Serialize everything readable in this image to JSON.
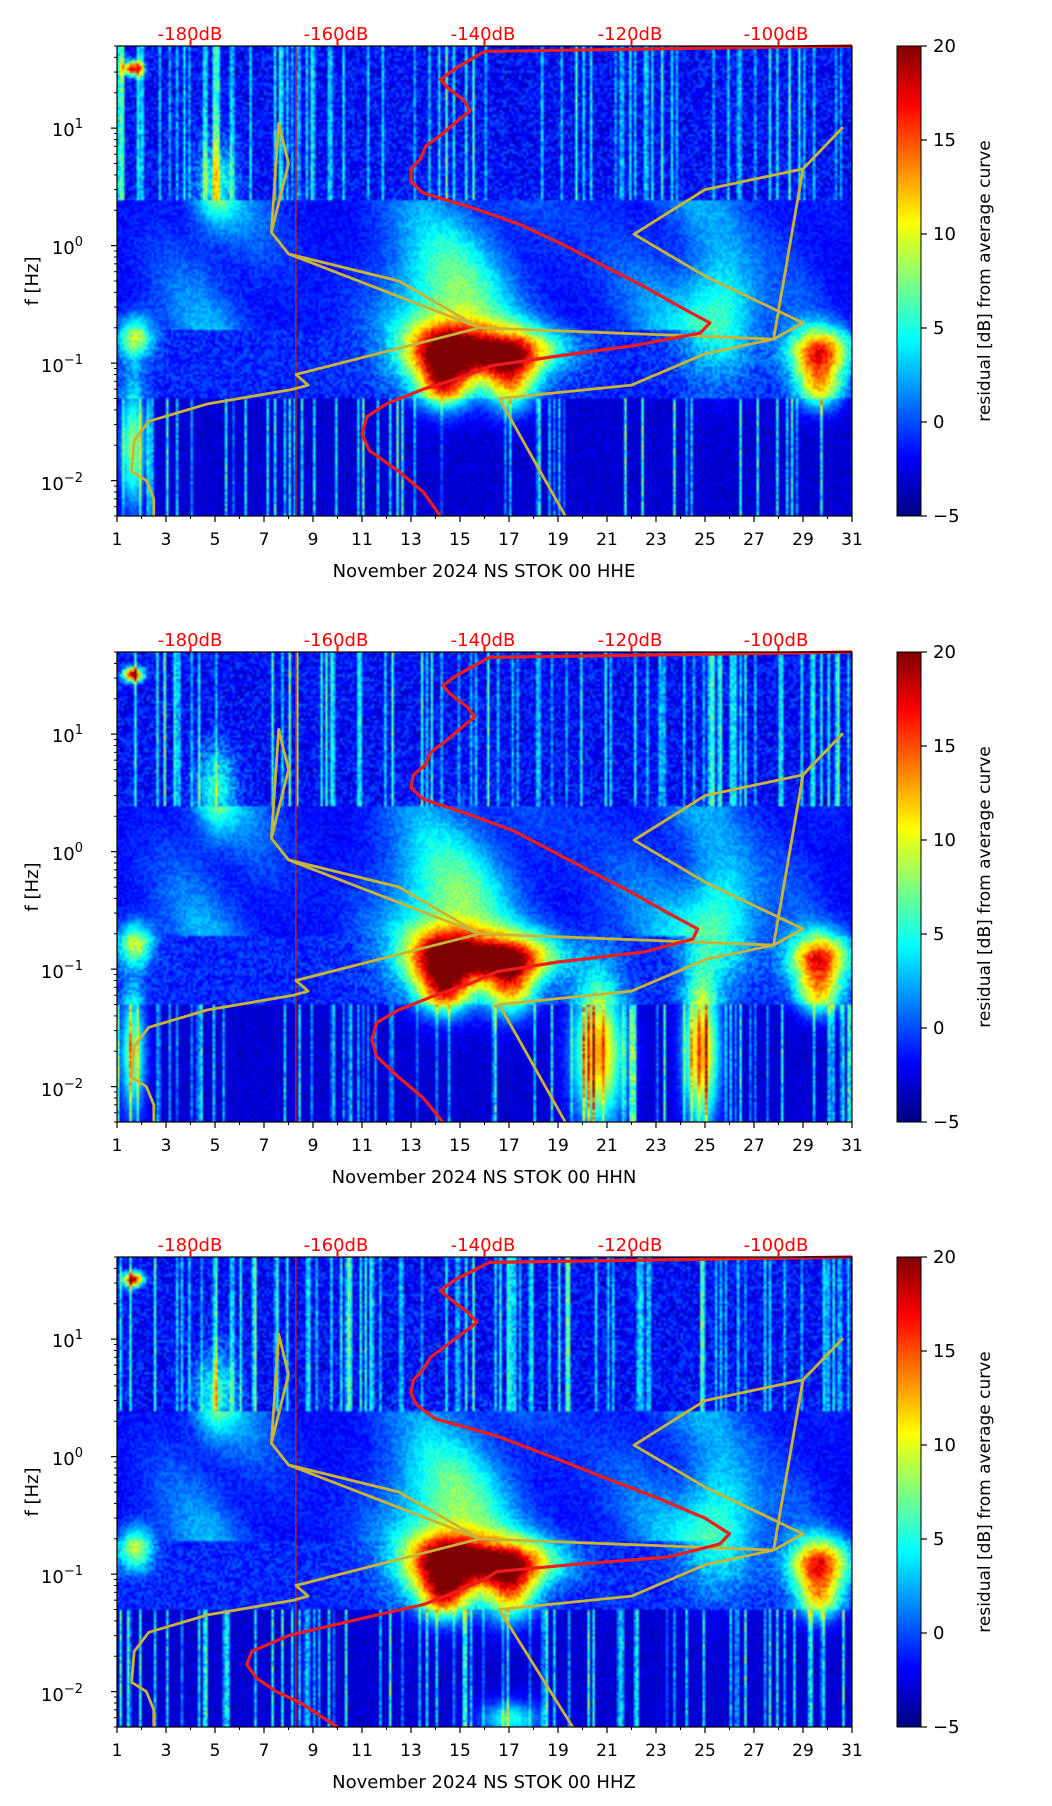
{
  "colormap": [
    "#00007f",
    "#0000ff",
    "#007fff",
    "#00ffff",
    "#7fff7f",
    "#ffff00",
    "#ff7f00",
    "#ff0000",
    "#7f0000"
  ],
  "colors": {
    "noise_curve": "#ee1c1c",
    "model_curve": "#c9b437",
    "db_label": "#ff0000"
  },
  "chart_data": [
    {
      "type": "heatmap",
      "title": "November 2024 NS STOK 00 HHE",
      "xlabel": "November 2024 NS STOK 00 HHE",
      "ylabel": "f [Hz]",
      "xlim": [
        1,
        31
      ],
      "ylim": [
        0.005,
        50
      ],
      "yscale": "log",
      "xticks": [
        "1",
        "3",
        "5",
        "7",
        "9",
        "11",
        "13",
        "15",
        "17",
        "19",
        "21",
        "23",
        "25",
        "27",
        "29",
        "31"
      ],
      "yticks": [
        {
          "base": "10",
          "exp": "−2",
          "value": 0.01
        },
        {
          "base": "10",
          "exp": "−1",
          "value": 0.1
        },
        {
          "base": "10",
          "exp": "0",
          "value": 1
        },
        {
          "base": "10",
          "exp": "1",
          "value": 10
        }
      ],
      "top_axis_labels": [
        "-180dB",
        "-160dB",
        "-140dB",
        "-120dB",
        "-100dB"
      ],
      "colorbar": {
        "label": "residual [dB] from average curve",
        "range": [
          -5,
          20
        ],
        "ticks": [
          "−5",
          "0",
          "5",
          "10",
          "15",
          "20"
        ]
      },
      "curve_red": [
        [
          14.2,
          0.005
        ],
        [
          13.5,
          0.008
        ],
        [
          12.5,
          0.012
        ],
        [
          11.3,
          0.018
        ],
        [
          11.0,
          0.025
        ],
        [
          11.2,
          0.035
        ],
        [
          12.0,
          0.045
        ],
        [
          13.5,
          0.06
        ],
        [
          15.0,
          0.075
        ],
        [
          16.3,
          0.095
        ],
        [
          19.0,
          0.115
        ],
        [
          22.0,
          0.14
        ],
        [
          24.8,
          0.18
        ],
        [
          25.2,
          0.22
        ],
        [
          24.0,
          0.3
        ],
        [
          22.5,
          0.45
        ],
        [
          21.0,
          0.65
        ],
        [
          19.5,
          0.95
        ],
        [
          17.5,
          1.5
        ],
        [
          15.5,
          2.1
        ],
        [
          13.5,
          2.8
        ],
        [
          13.0,
          3.5
        ],
        [
          13.0,
          4.5
        ],
        [
          13.4,
          5.5
        ],
        [
          13.6,
          7.0
        ],
        [
          14.3,
          9.0
        ],
        [
          15.0,
          12
        ],
        [
          15.4,
          14
        ],
        [
          15.2,
          17
        ],
        [
          14.5,
          22
        ],
        [
          14.2,
          26
        ],
        [
          14.8,
          32
        ],
        [
          16.0,
          45
        ],
        [
          31.0,
          50
        ]
      ],
      "curve_yellow": [
        [
          19.3,
          0.005
        ],
        [
          16.6,
          0.05
        ],
        [
          22.0,
          0.065
        ],
        [
          25.0,
          0.12
        ],
        [
          27.8,
          0.16
        ],
        [
          29.0,
          0.22
        ],
        [
          25.0,
          0.55
        ],
        [
          22.1,
          1.25
        ],
        [
          25.0,
          3.0
        ],
        [
          29.0,
          4.5
        ],
        [
          30.6,
          10
        ],
        [
          29.0,
          4.5
        ],
        [
          27.8,
          0.16
        ],
        [
          15.8,
          0.2
        ],
        [
          12.5,
          0.5
        ],
        [
          8.0,
          0.85
        ],
        [
          7.3,
          1.3
        ],
        [
          8.0,
          5.0
        ],
        [
          7.6,
          11
        ],
        [
          7.3,
          1.3
        ],
        [
          8.0,
          0.85
        ],
        [
          15.8,
          0.2
        ],
        [
          8.3,
          0.08
        ],
        [
          8.8,
          0.065
        ],
        [
          8.2,
          0.06
        ],
        [
          4.7,
          0.045
        ],
        [
          2.3,
          0.032
        ],
        [
          1.7,
          0.022
        ],
        [
          1.6,
          0.012
        ],
        [
          2.2,
          0.01
        ],
        [
          2.5,
          0.007
        ],
        [
          2.5,
          0.005
        ]
      ],
      "hotspots": [
        [
          14.3,
          0.13,
          1.6,
          0.25,
          18
        ],
        [
          16.9,
          0.13,
          2.0,
          0.2,
          18
        ],
        [
          29.6,
          0.13,
          1.2,
          0.2,
          17
        ],
        [
          14.3,
          0.065,
          1.0,
          0.2,
          13
        ],
        [
          17.0,
          0.07,
          1.0,
          0.25,
          12
        ],
        [
          29.6,
          0.065,
          0.9,
          0.2,
          12
        ],
        [
          14.2,
          0.3,
          2.5,
          0.6,
          6
        ],
        [
          25.5,
          0.25,
          1.5,
          0.5,
          7
        ],
        [
          1.7,
          0.17,
          0.7,
          0.18,
          10
        ],
        [
          5.0,
          3.5,
          0.8,
          0.35,
          7
        ],
        [
          1.6,
          33,
          0.4,
          0.06,
          20
        ],
        [
          1.6,
          0.02,
          0.5,
          0.5,
          11
        ]
      ],
      "strong_lows": [
        [
          20.6,
          0.02,
          1.0,
          0.6,
          0
        ],
        [
          24.8,
          0.02,
          0.7,
          0.6,
          0
        ]
      ]
    },
    {
      "type": "heatmap",
      "title": "November 2024 NS STOK 00 HHN",
      "xlabel": "November 2024 NS STOK 00 HHN",
      "ylabel": "f [Hz]",
      "xlim": [
        1,
        31
      ],
      "ylim": [
        0.005,
        50
      ],
      "yscale": "log",
      "xticks": [
        "1",
        "3",
        "5",
        "7",
        "9",
        "11",
        "13",
        "15",
        "17",
        "19",
        "21",
        "23",
        "25",
        "27",
        "29",
        "31"
      ],
      "yticks": [
        {
          "base": "10",
          "exp": "−2",
          "value": 0.01
        },
        {
          "base": "10",
          "exp": "−1",
          "value": 0.1
        },
        {
          "base": "10",
          "exp": "0",
          "value": 1
        },
        {
          "base": "10",
          "exp": "1",
          "value": 10
        }
      ],
      "top_axis_labels": [
        "-180dB",
        "-160dB",
        "-140dB",
        "-120dB",
        "-100dB"
      ],
      "colorbar": {
        "label": "residual [dB] from average curve",
        "range": [
          -5,
          20
        ],
        "ticks": [
          "−5",
          "0",
          "5",
          "10",
          "15",
          "20"
        ]
      },
      "curve_red": [
        [
          14.3,
          0.005
        ],
        [
          13.5,
          0.008
        ],
        [
          12.5,
          0.012
        ],
        [
          11.6,
          0.018
        ],
        [
          11.4,
          0.025
        ],
        [
          11.6,
          0.035
        ],
        [
          12.5,
          0.045
        ],
        [
          14.0,
          0.06
        ],
        [
          15.4,
          0.075
        ],
        [
          16.5,
          0.095
        ],
        [
          19.0,
          0.115
        ],
        [
          22.5,
          0.14
        ],
        [
          24.5,
          0.18
        ],
        [
          24.7,
          0.22
        ],
        [
          23.5,
          0.3
        ],
        [
          22.0,
          0.45
        ],
        [
          20.5,
          0.65
        ],
        [
          19.0,
          0.95
        ],
        [
          17.2,
          1.5
        ],
        [
          15.3,
          2.1
        ],
        [
          13.5,
          2.8
        ],
        [
          13.0,
          3.5
        ],
        [
          13.1,
          4.5
        ],
        [
          13.6,
          5.5
        ],
        [
          13.8,
          7.0
        ],
        [
          14.5,
          9.0
        ],
        [
          15.2,
          12
        ],
        [
          15.6,
          14
        ],
        [
          15.3,
          17
        ],
        [
          14.6,
          22
        ],
        [
          14.3,
          26
        ],
        [
          14.9,
          32
        ],
        [
          16.2,
          45
        ],
        [
          31.0,
          50
        ]
      ],
      "curve_yellow": [
        [
          19.3,
          0.005
        ],
        [
          16.6,
          0.05
        ],
        [
          22.0,
          0.065
        ],
        [
          25.0,
          0.12
        ],
        [
          27.8,
          0.16
        ],
        [
          29.0,
          0.22
        ],
        [
          25.0,
          0.55
        ],
        [
          22.1,
          1.25
        ],
        [
          25.0,
          3.0
        ],
        [
          29.0,
          4.5
        ],
        [
          30.6,
          10
        ],
        [
          29.0,
          4.5
        ],
        [
          27.8,
          0.16
        ],
        [
          15.8,
          0.2
        ],
        [
          12.5,
          0.5
        ],
        [
          8.0,
          0.85
        ],
        [
          7.3,
          1.3
        ],
        [
          8.0,
          5.0
        ],
        [
          7.6,
          11
        ],
        [
          7.3,
          1.3
        ],
        [
          8.0,
          0.85
        ],
        [
          15.8,
          0.2
        ],
        [
          8.3,
          0.08
        ],
        [
          8.8,
          0.065
        ],
        [
          8.2,
          0.06
        ],
        [
          4.7,
          0.045
        ],
        [
          2.3,
          0.032
        ],
        [
          1.7,
          0.022
        ],
        [
          1.6,
          0.012
        ],
        [
          2.2,
          0.01
        ],
        [
          2.5,
          0.007
        ],
        [
          2.5,
          0.005
        ]
      ],
      "hotspots": [
        [
          14.3,
          0.13,
          1.6,
          0.25,
          18
        ],
        [
          16.9,
          0.13,
          2.0,
          0.2,
          18
        ],
        [
          29.6,
          0.13,
          1.2,
          0.2,
          17
        ],
        [
          14.3,
          0.065,
          1.0,
          0.2,
          13
        ],
        [
          17.0,
          0.07,
          1.0,
          0.25,
          12
        ],
        [
          29.6,
          0.065,
          0.9,
          0.2,
          12
        ],
        [
          14.2,
          0.3,
          2.5,
          0.6,
          6
        ],
        [
          25.5,
          0.25,
          1.5,
          0.5,
          7
        ],
        [
          1.7,
          0.17,
          0.7,
          0.18,
          10
        ],
        [
          5.0,
          3.5,
          0.8,
          0.35,
          7
        ],
        [
          1.6,
          33,
          0.4,
          0.06,
          20
        ],
        [
          1.6,
          0.02,
          0.5,
          0.5,
          11
        ],
        [
          20.6,
          0.02,
          1.0,
          0.6,
          16
        ],
        [
          24.8,
          0.02,
          0.7,
          0.6,
          16
        ]
      ],
      "strong_lows": []
    },
    {
      "type": "heatmap",
      "title": "November 2024 NS STOK 00 HHZ",
      "xlabel": "November 2024 NS STOK 00 HHZ",
      "ylabel": "f [Hz]",
      "xlim": [
        1,
        31
      ],
      "ylim": [
        0.005,
        50
      ],
      "yscale": "log",
      "xticks": [
        "1",
        "3",
        "5",
        "7",
        "9",
        "11",
        "13",
        "15",
        "17",
        "19",
        "21",
        "23",
        "25",
        "27",
        "29",
        "31"
      ],
      "yticks": [
        {
          "base": "10",
          "exp": "−2",
          "value": 0.01
        },
        {
          "base": "10",
          "exp": "−1",
          "value": 0.1
        },
        {
          "base": "10",
          "exp": "0",
          "value": 1
        },
        {
          "base": "10",
          "exp": "1",
          "value": 10
        }
      ],
      "top_axis_labels": [
        "-180dB",
        "-160dB",
        "-140dB",
        "-120dB",
        "-100dB"
      ],
      "colorbar": {
        "label": "residual [dB] from average curve",
        "range": [
          -5,
          20
        ],
        "ticks": [
          "−5",
          "0",
          "5",
          "10",
          "15",
          "20"
        ]
      },
      "curve_red": [
        [
          10.0,
          0.005
        ],
        [
          8.5,
          0.008
        ],
        [
          7.5,
          0.01
        ],
        [
          6.7,
          0.013
        ],
        [
          6.3,
          0.017
        ],
        [
          6.5,
          0.022
        ],
        [
          8.0,
          0.03
        ],
        [
          11.0,
          0.042
        ],
        [
          13.5,
          0.055
        ],
        [
          14.8,
          0.07
        ],
        [
          16.0,
          0.09
        ],
        [
          16.5,
          0.105
        ],
        [
          19.5,
          0.12
        ],
        [
          23.5,
          0.14
        ],
        [
          25.6,
          0.18
        ],
        [
          26.0,
          0.22
        ],
        [
          25.0,
          0.3
        ],
        [
          23.0,
          0.45
        ],
        [
          21.0,
          0.65
        ],
        [
          19.0,
          0.95
        ],
        [
          16.5,
          1.5
        ],
        [
          14.0,
          2.1
        ],
        [
          13.2,
          2.8
        ],
        [
          13.0,
          3.5
        ],
        [
          13.1,
          4.5
        ],
        [
          13.5,
          5.5
        ],
        [
          13.8,
          7.0
        ],
        [
          14.5,
          9.0
        ],
        [
          15.3,
          12
        ],
        [
          15.7,
          14
        ],
        [
          15.3,
          17
        ],
        [
          14.6,
          22
        ],
        [
          14.2,
          26
        ],
        [
          14.8,
          32
        ],
        [
          16.2,
          45
        ],
        [
          31.0,
          50
        ]
      ],
      "curve_yellow": [
        [
          19.6,
          0.005
        ],
        [
          16.6,
          0.05
        ],
        [
          22.0,
          0.065
        ],
        [
          25.0,
          0.12
        ],
        [
          27.8,
          0.16
        ],
        [
          29.0,
          0.22
        ],
        [
          25.0,
          0.55
        ],
        [
          22.1,
          1.25
        ],
        [
          25.0,
          3.0
        ],
        [
          29.0,
          4.5
        ],
        [
          30.6,
          10
        ],
        [
          29.0,
          4.5
        ],
        [
          27.8,
          0.16
        ],
        [
          15.8,
          0.2
        ],
        [
          12.5,
          0.5
        ],
        [
          8.0,
          0.85
        ],
        [
          7.3,
          1.3
        ],
        [
          8.0,
          5.0
        ],
        [
          7.6,
          11
        ],
        [
          7.3,
          1.3
        ],
        [
          8.0,
          0.85
        ],
        [
          15.8,
          0.2
        ],
        [
          8.3,
          0.08
        ],
        [
          8.8,
          0.065
        ],
        [
          8.2,
          0.06
        ],
        [
          4.7,
          0.045
        ],
        [
          2.3,
          0.032
        ],
        [
          1.7,
          0.022
        ],
        [
          1.6,
          0.012
        ],
        [
          2.2,
          0.01
        ],
        [
          2.5,
          0.007
        ],
        [
          2.5,
          0.005
        ]
      ],
      "hotspots": [
        [
          14.3,
          0.13,
          1.6,
          0.25,
          18
        ],
        [
          16.9,
          0.13,
          2.0,
          0.2,
          18
        ],
        [
          29.6,
          0.13,
          1.2,
          0.2,
          17
        ],
        [
          14.3,
          0.065,
          1.0,
          0.2,
          13
        ],
        [
          17.0,
          0.07,
          1.0,
          0.25,
          12
        ],
        [
          29.6,
          0.065,
          0.9,
          0.2,
          12
        ],
        [
          14.2,
          0.3,
          2.5,
          0.6,
          6
        ],
        [
          25.5,
          0.25,
          1.5,
          0.5,
          7
        ],
        [
          1.7,
          0.17,
          0.7,
          0.18,
          10
        ],
        [
          5.0,
          3.5,
          0.8,
          0.35,
          7
        ],
        [
          1.6,
          33,
          0.4,
          0.06,
          20
        ],
        [
          17.0,
          0.006,
          1.2,
          0.15,
          8
        ]
      ],
      "strong_lows": []
    }
  ]
}
